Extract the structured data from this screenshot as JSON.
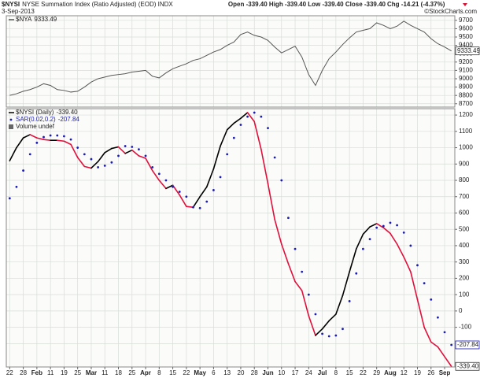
{
  "header": {
    "symbol": "$NYSI",
    "description": "NYSE Summation Index (Ratio Adjusted) (EOD) INDX",
    "date": "3-Sep-2013",
    "quote": "Open -339.40 High -339.40 Low -339.40 Close -339.40",
    "change": "Chg -14.21 (-4.37%)",
    "watermark": "©StockCharts.com"
  },
  "chart_data": [
    {
      "type": "line",
      "series": [
        {
          "name": "$NYA",
          "color": "#555555",
          "values": [
            8800,
            8820,
            8850,
            8870,
            8900,
            8940,
            8920,
            8870,
            8860,
            8840,
            8850,
            8900,
            8960,
            9000,
            9020,
            9040,
            9050,
            9060,
            9080,
            9090,
            9100,
            9030,
            9010,
            9070,
            9120,
            9150,
            9180,
            9220,
            9240,
            9280,
            9320,
            9350,
            9400,
            9440,
            9530,
            9560,
            9520,
            9500,
            9460,
            9380,
            9310,
            9350,
            9390,
            9260,
            9050,
            8920,
            9100,
            9240,
            9320,
            9410,
            9490,
            9560,
            9580,
            9600,
            9670,
            9640,
            9600,
            9630,
            9690,
            9640,
            9600,
            9560,
            9480,
            9420,
            9380,
            9333.49
          ]
        }
      ],
      "ylim": [
        8660,
        9755
      ],
      "yticks": [
        8700,
        8800,
        8900,
        9000,
        9100,
        9200,
        9300,
        9400,
        9500,
        9600,
        9700
      ],
      "grid": true
    },
    {
      "type": "line",
      "categories": [
        "22",
        null,
        "28",
        null,
        "Feb",
        null,
        "11",
        null,
        "19",
        null,
        "25",
        null,
        "Mar",
        null,
        "11",
        null,
        "18",
        null,
        "25",
        null,
        "Apr",
        null,
        "8",
        null,
        "15",
        null,
        "22",
        null,
        "May",
        null,
        "6",
        null,
        "13",
        null,
        "20",
        null,
        "28",
        null,
        "Jun",
        null,
        "10",
        null,
        "17",
        null,
        "24",
        null,
        "Jul",
        null,
        "8",
        null,
        "15",
        null,
        "22",
        null,
        "29",
        null,
        "Aug",
        null,
        "12",
        null,
        "19",
        null,
        "26",
        null,
        "Sep",
        null
      ],
      "series": [
        {
          "name": "$NYSI (Daily)",
          "color": "#000000",
          "down_color": "#e0103c",
          "values": [
            920,
            1000,
            1060,
            1080,
            1060,
            1050,
            1045,
            1045,
            1040,
            1020,
            940,
            885,
            875,
            915,
            970,
            995,
            1005,
            965,
            985,
            950,
            935,
            860,
            800,
            750,
            770,
            710,
            640,
            635,
            700,
            760,
            870,
            1010,
            1110,
            1150,
            1180,
            1215,
            1160,
            990,
            780,
            560,
            410,
            290,
            180,
            125,
            -30,
            -150,
            -110,
            -60,
            -20,
            95,
            240,
            380,
            470,
            515,
            535,
            510,
            475,
            410,
            330,
            240,
            70,
            -100,
            -190,
            -220,
            -280,
            -339.4
          ],
          "value_labels": [
            null,
            null,
            null,
            null,
            null,
            null,
            null,
            null,
            null,
            null,
            null,
            null,
            null,
            null,
            null,
            null,
            null,
            null,
            null,
            null,
            null,
            null,
            null,
            null,
            null,
            null,
            null,
            null,
            null,
            null,
            null,
            null,
            null,
            null,
            null,
            null,
            null,
            null,
            null,
            null,
            null,
            null,
            null,
            null,
            null,
            null,
            null,
            null,
            null,
            null,
            null,
            null,
            null,
            null,
            null,
            null,
            null,
            null,
            null,
            null,
            null,
            null,
            null,
            null,
            null,
            "-339.40"
          ]
        },
        {
          "name": "SAR(0.02,0.2)",
          "color": "#1c1cb4",
          "marker": "dot",
          "values": [
            690,
            760,
            860,
            960,
            1030,
            1065,
            1075,
            1075,
            1070,
            1050,
            1000,
            960,
            930,
            880,
            890,
            910,
            950,
            1010,
            1005,
            990,
            950,
            880,
            840,
            800,
            760,
            730,
            700,
            635,
            630,
            670,
            740,
            820,
            960,
            1060,
            1140,
            1190,
            1215,
            1190,
            1120,
            940,
            800,
            570,
            380,
            240,
            100,
            -20,
            -140,
            -155,
            -150,
            -110,
            60,
            230,
            380,
            440,
            510,
            520,
            540,
            525,
            480,
            400,
            280,
            170,
            70,
            -40,
            -130,
            -207.84
          ]
        }
      ],
      "legend_extra": "Volume undef",
      "ylim": [
        -343,
        1239
      ],
      "yticks": [
        -200,
        -100,
        0,
        100,
        200,
        300,
        400,
        500,
        600,
        700,
        800,
        900,
        1000,
        1100,
        1200
      ],
      "grid": true
    }
  ]
}
